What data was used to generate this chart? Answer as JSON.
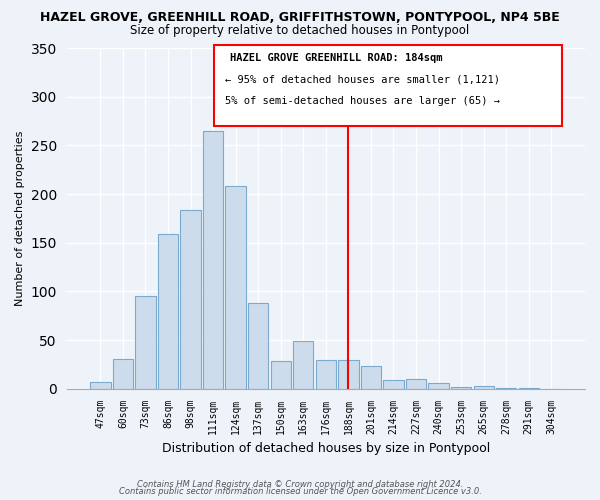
{
  "title": "HAZEL GROVE, GREENHILL ROAD, GRIFFITHSTOWN, PONTYPOOL, NP4 5BE",
  "subtitle": "Size of property relative to detached houses in Pontypool",
  "xlabel": "Distribution of detached houses by size in Pontypool",
  "ylabel": "Number of detached properties",
  "bar_labels": [
    "47sqm",
    "60sqm",
    "73sqm",
    "86sqm",
    "98sqm",
    "111sqm",
    "124sqm",
    "137sqm",
    "150sqm",
    "163sqm",
    "176sqm",
    "188sqm",
    "201sqm",
    "214sqm",
    "227sqm",
    "240sqm",
    "253sqm",
    "265sqm",
    "278sqm",
    "291sqm",
    "304sqm"
  ],
  "bar_values": [
    7,
    31,
    95,
    159,
    184,
    265,
    208,
    88,
    28,
    49,
    29,
    29,
    23,
    9,
    10,
    6,
    2,
    3,
    1,
    1,
    0
  ],
  "bar_color": "#cddcec",
  "bar_edge_color": "#7aaad0",
  "vline_index": 11,
  "vline_color": "red",
  "ylim": [
    0,
    350
  ],
  "yticks": [
    0,
    50,
    100,
    150,
    200,
    250,
    300,
    350
  ],
  "annotation_title": "HAZEL GROVE GREENHILL ROAD: 184sqm",
  "annotation_line1": "← 95% of detached houses are smaller (1,121)",
  "annotation_line2": "5% of semi-detached houses are larger (65) →",
  "footer1": "Contains HM Land Registry data © Crown copyright and database right 2024.",
  "footer2": "Contains public sector information licensed under the Open Government Licence v3.0.",
  "bg_color": "#eef3f9",
  "grid_color": "#ffffff"
}
